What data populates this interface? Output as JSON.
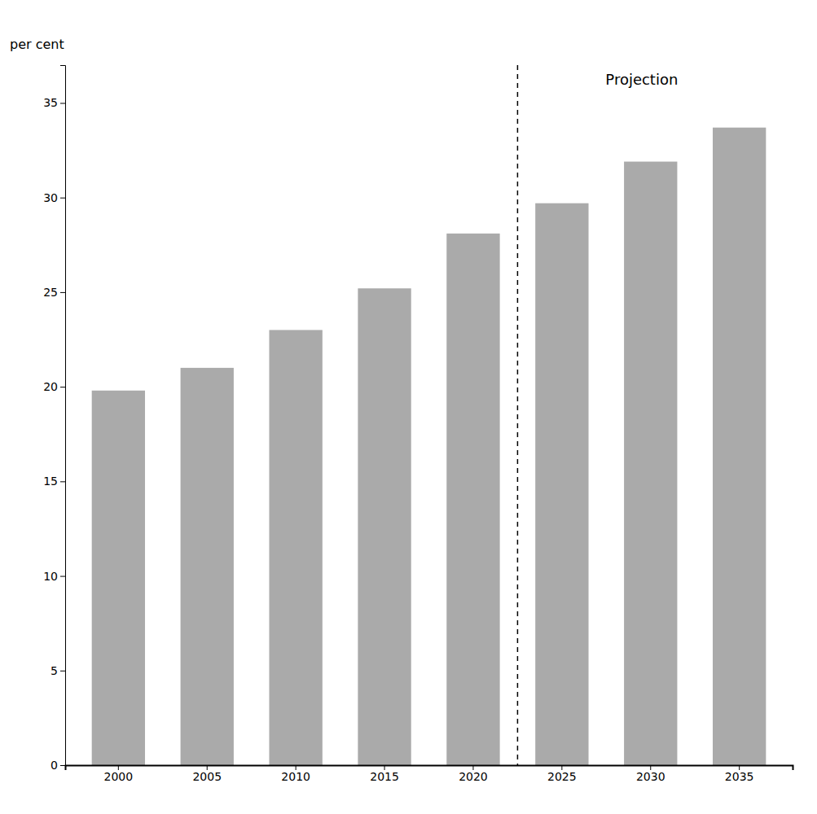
{
  "chart_data": {
    "type": "bar",
    "categories": [
      "2000",
      "2005",
      "2010",
      "2015",
      "2020",
      "2025",
      "2030",
      "2035"
    ],
    "values": [
      19.8,
      21.0,
      23.0,
      25.2,
      28.1,
      29.7,
      31.9,
      33.7
    ],
    "color": "#aaaaaa",
    "ylabel": "per cent",
    "ylim": [
      0,
      37
    ],
    "yticks": [
      0,
      5,
      10,
      15,
      20,
      25,
      30,
      35
    ],
    "grid": false,
    "annotations": [
      {
        "text": "Projection",
        "start": "2025",
        "y": 35.8,
        "line_style": "dashed"
      }
    ]
  }
}
